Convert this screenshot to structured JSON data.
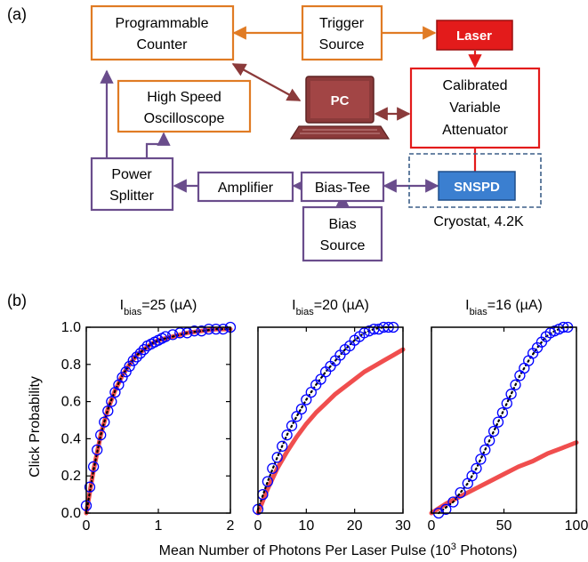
{
  "panel_a": {
    "label": "(a)",
    "blocks": {
      "counter": [
        "Programmable",
        "Counter"
      ],
      "trigger": [
        "Trigger",
        "Source"
      ],
      "laser": "Laser",
      "oscilloscope": [
        "High Speed",
        "Oscilloscope"
      ],
      "pc": "PC",
      "attenuator": [
        "Calibrated",
        "Variable",
        "Attenuator"
      ],
      "splitter": [
        "Power",
        "Splitter"
      ],
      "amplifier": "Amplifier",
      "biastee": "Bias-Tee",
      "snspd": "SNSPD",
      "biassource": [
        "Bias",
        "Source"
      ]
    },
    "cryostat_label": "Cryostat, 4.2K",
    "colors": {
      "orange": "#e07b24",
      "purple": "#6a4d8c",
      "red": "#e31b1b",
      "pc_brown": "#8b3a3a",
      "snspd_blue": "#3b7fd0",
      "cryostat_dash": "#3c5f88"
    }
  },
  "panel_b": {
    "label": "(b)",
    "ylabel": "Click Probability",
    "xlabel": "Mean Number of Photons Per Laser Pulse (10",
    "xlabel_sup": "3",
    "xlabel_end": " Photons)"
  },
  "chart_data": [
    {
      "type": "line",
      "title": "Ibias=25 (µA)",
      "title_main": "I",
      "title_sub": "bias",
      "title_rest": "=25 (µA)",
      "xlim": [
        0,
        2
      ],
      "ylim": [
        0,
        1
      ],
      "xticks": [
        0,
        1,
        2
      ],
      "yticks": [
        0.0,
        0.2,
        0.4,
        0.6,
        0.8,
        1.0
      ],
      "yticklabels": [
        "0.0",
        "0.2",
        "0.4",
        "0.6",
        "0.8",
        "1.0"
      ],
      "series": [
        {
          "style": "blue-circles",
          "color": "#0000ff",
          "x": [
            0.0,
            0.05,
            0.1,
            0.15,
            0.2,
            0.25,
            0.3,
            0.35,
            0.4,
            0.45,
            0.5,
            0.55,
            0.6,
            0.65,
            0.7,
            0.75,
            0.8,
            0.85,
            0.9,
            0.95,
            1.0,
            1.05,
            1.1,
            1.2,
            1.3,
            1.4,
            1.5,
            1.6,
            1.7,
            1.8,
            1.9,
            2.0
          ],
          "y": [
            0.04,
            0.14,
            0.25,
            0.34,
            0.42,
            0.49,
            0.55,
            0.6,
            0.65,
            0.69,
            0.73,
            0.76,
            0.79,
            0.82,
            0.84,
            0.86,
            0.88,
            0.9,
            0.91,
            0.92,
            0.93,
            0.94,
            0.95,
            0.96,
            0.97,
            0.97,
            0.98,
            0.98,
            0.99,
            0.99,
            0.99,
            1.0
          ]
        },
        {
          "style": "red-line",
          "color": "#f04e4e",
          "x": [
            0.0,
            0.1,
            0.2,
            0.3,
            0.4,
            0.5,
            0.6,
            0.7,
            0.8,
            0.9,
            1.0,
            1.2,
            1.4,
            1.6,
            1.8,
            2.0
          ],
          "y": [
            0.0,
            0.23,
            0.42,
            0.56,
            0.66,
            0.74,
            0.8,
            0.85,
            0.88,
            0.91,
            0.93,
            0.95,
            0.97,
            0.98,
            0.99,
            0.99
          ]
        },
        {
          "style": "black-dotted",
          "color": "#000000",
          "x": [
            0.0,
            0.1,
            0.2,
            0.3,
            0.4,
            0.5,
            0.6,
            0.7,
            0.8,
            0.9,
            1.0,
            1.2,
            1.4,
            1.6,
            1.8,
            2.0
          ],
          "y": [
            0.0,
            0.23,
            0.42,
            0.56,
            0.66,
            0.74,
            0.8,
            0.85,
            0.88,
            0.91,
            0.93,
            0.95,
            0.97,
            0.98,
            0.99,
            0.99
          ]
        }
      ]
    },
    {
      "type": "line",
      "title": "Ibias=20 (µA)",
      "title_main": "I",
      "title_sub": "bias",
      "title_rest": "=20 (µA)",
      "xlim": [
        0,
        30
      ],
      "ylim": [
        0,
        1
      ],
      "xticks": [
        0,
        10,
        20,
        30
      ],
      "yticks": [],
      "yticklabels": [],
      "series": [
        {
          "style": "blue-circles",
          "color": "#0000ff",
          "x": [
            0,
            1,
            2,
            3,
            4,
            5,
            6,
            7,
            8,
            9,
            10,
            11,
            12,
            13,
            14,
            15,
            16,
            17,
            18,
            19,
            20,
            21,
            22,
            23,
            24,
            25,
            26,
            27,
            28
          ],
          "y": [
            0.02,
            0.1,
            0.17,
            0.24,
            0.3,
            0.36,
            0.42,
            0.47,
            0.52,
            0.56,
            0.61,
            0.65,
            0.69,
            0.72,
            0.76,
            0.79,
            0.82,
            0.85,
            0.88,
            0.9,
            0.93,
            0.95,
            0.97,
            0.98,
            0.99,
            0.99,
            1.0,
            1.0,
            1.0
          ]
        },
        {
          "style": "red-line",
          "color": "#f04e4e",
          "x": [
            0,
            2,
            4,
            6,
            8,
            10,
            12,
            14,
            16,
            18,
            20,
            22,
            24,
            26,
            28,
            30
          ],
          "y": [
            0.0,
            0.13,
            0.24,
            0.33,
            0.41,
            0.48,
            0.54,
            0.59,
            0.64,
            0.68,
            0.72,
            0.76,
            0.79,
            0.82,
            0.85,
            0.88
          ]
        },
        {
          "style": "black-dotted",
          "color": "#000000",
          "x": [
            0,
            2,
            4,
            6,
            8,
            10,
            12,
            14,
            16,
            18,
            20,
            22,
            24,
            26,
            28
          ],
          "y": [
            0.02,
            0.17,
            0.3,
            0.42,
            0.52,
            0.61,
            0.69,
            0.76,
            0.82,
            0.88,
            0.93,
            0.97,
            0.99,
            1.0,
            1.0
          ]
        }
      ]
    },
    {
      "type": "line",
      "title": "Ibias=16 (µA)",
      "title_main": "I",
      "title_sub": "bias",
      "title_rest": "=16 (µA)",
      "xlim": [
        0,
        100
      ],
      "ylim": [
        0,
        1
      ],
      "xticks": [
        0,
        50,
        100
      ],
      "yticks": [],
      "yticklabels": [],
      "series": [
        {
          "style": "blue-circles",
          "color": "#0000ff",
          "x": [
            5,
            10,
            15,
            20,
            25,
            28,
            31,
            34,
            37,
            40,
            43,
            46,
            49,
            52,
            55,
            58,
            61,
            64,
            67,
            70,
            73,
            76,
            79,
            82,
            85,
            88,
            91,
            94
          ],
          "y": [
            0.0,
            0.02,
            0.06,
            0.11,
            0.16,
            0.2,
            0.24,
            0.29,
            0.34,
            0.39,
            0.44,
            0.49,
            0.54,
            0.59,
            0.64,
            0.69,
            0.74,
            0.78,
            0.82,
            0.86,
            0.89,
            0.92,
            0.95,
            0.97,
            0.98,
            0.99,
            1.0,
            1.0
          ]
        },
        {
          "style": "red-line",
          "color": "#f04e4e",
          "x": [
            0,
            10,
            20,
            30,
            40,
            50,
            60,
            70,
            80,
            90,
            100
          ],
          "y": [
            0.0,
            0.05,
            0.09,
            0.13,
            0.17,
            0.21,
            0.25,
            0.28,
            0.32,
            0.35,
            0.38
          ]
        },
        {
          "style": "black-dotted",
          "color": "#000000",
          "x": [
            5,
            15,
            25,
            31,
            37,
            43,
            49,
            55,
            61,
            67,
            73,
            79,
            85,
            91,
            97
          ],
          "y": [
            0.0,
            0.06,
            0.16,
            0.24,
            0.34,
            0.44,
            0.54,
            0.64,
            0.74,
            0.82,
            0.89,
            0.95,
            0.98,
            1.0,
            1.0
          ]
        }
      ]
    }
  ]
}
